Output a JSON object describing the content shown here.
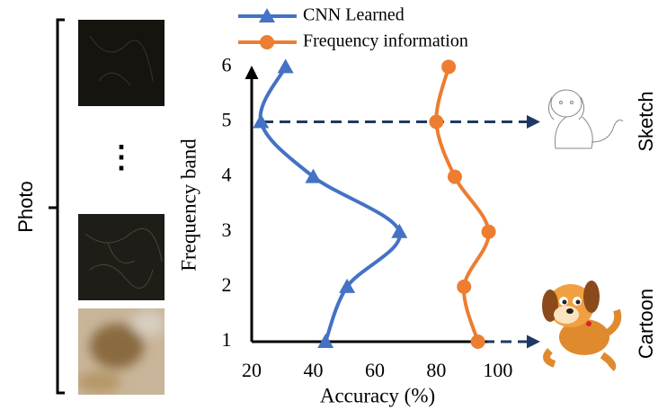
{
  "chart_data": {
    "type": "line",
    "x_label": "Accuracy (%)",
    "y_label": "Frequency band",
    "y": [
      1,
      2,
      3,
      4,
      5,
      6
    ],
    "series": [
      {
        "name": "CNN Learned",
        "color": "#4472c4",
        "marker": "triangle",
        "values": [
          44,
          51,
          68,
          40,
          23,
          31
        ]
      },
      {
        "name": "Frequency information",
        "color": "#ed7d31",
        "marker": "circle",
        "values": [
          93.5,
          89,
          97,
          86,
          80,
          84
        ]
      }
    ],
    "xlim": [
      20,
      105
    ],
    "xticks": [
      20,
      40,
      60,
      80,
      100
    ],
    "ylim": [
      1,
      6.3
    ],
    "yticks": [
      1,
      2,
      3,
      4,
      5,
      6
    ],
    "annotations": {
      "photo": "Photo",
      "ellipsis": "⋮",
      "sketch": "Sketch",
      "cartoon": "Cartoon"
    }
  }
}
